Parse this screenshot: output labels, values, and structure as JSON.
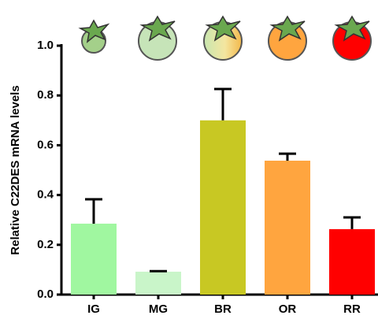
{
  "chart_data": {
    "type": "bar",
    "y_label": "Relative C22DES mRNA levels",
    "categories": [
      "IG",
      "MG",
      "BR",
      "OR",
      "RR"
    ],
    "values": [
      0.285,
      0.092,
      0.7,
      0.538,
      0.263
    ],
    "errors": [
      0.098,
      0.002,
      0.126,
      0.028,
      0.047
    ],
    "colors": [
      "#a0f7a0",
      "#c9f5c9",
      "#c8c823",
      "#ffa53f",
      "#ff0000"
    ],
    "ylim": [
      0,
      1.0
    ],
    "yticks": [
      {
        "value": 0,
        "label": "0.0"
      },
      0.2,
      0.4,
      0.6,
      {
        "value": 1.0,
        "label": "1.0"
      },
      0.8
    ]
  }
}
